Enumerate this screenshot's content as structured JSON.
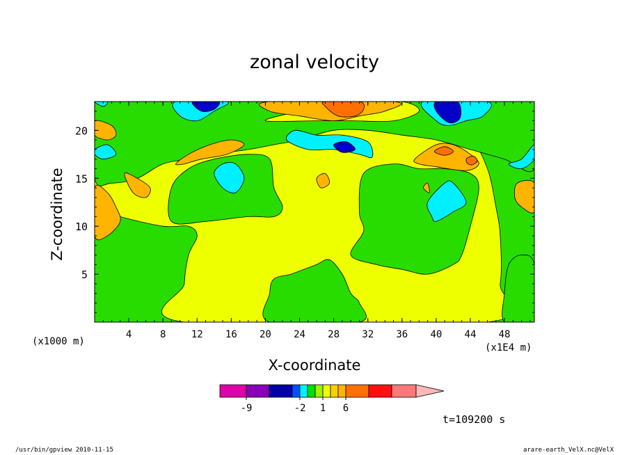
{
  "chart_data": {
    "type": "heatmap",
    "title": "zonal velocity",
    "xlabel": "X-coordinate",
    "ylabel": "Z-coordinate",
    "x_unit_label": "(x1E4 m)",
    "y_unit_label": "(x1000 m)",
    "x_ticks": [
      "4",
      "8",
      "12",
      "16",
      "20",
      "24",
      "28",
      "32",
      "36",
      "40",
      "44",
      "48"
    ],
    "y_ticks": [
      "5",
      "10",
      "15",
      "20"
    ],
    "xlim": [
      0,
      51.5
    ],
    "ylim": [
      0,
      23
    ],
    "time_label": "t=109200 s",
    "colorbar": {
      "tick_labels": [
        {
          "label": "-9",
          "value": -9
        },
        {
          "label": "-2",
          "value": -2
        },
        {
          "label": "1",
          "value": 1
        },
        {
          "label": "6",
          "value": 6
        }
      ],
      "colors": [
        "#e000a8",
        "#8800b8",
        "#0000a8",
        "#0050ff",
        "#00f0ff",
        "#00e000",
        "#a0f000",
        "#f0ff00",
        "#ffd000",
        "#ffb400",
        "#ff7000",
        "#ff1010",
        "#ff7878",
        "#ffb8b8"
      ],
      "triangle_color": "#ffb8b8"
    },
    "field_colors": {
      "background": "#28dc00",
      "slow_positive": "#eeff00",
      "positive": "#ffb400",
      "strong_positive": "#ff7000",
      "negative": "#00f0ff",
      "strong_negative": "#0000c8"
    },
    "regions": [
      {
        "level": "slow_positive",
        "points": [
          [
            10.5,
            0
          ],
          [
            46,
            0
          ],
          [
            47.5,
            4
          ],
          [
            47.5,
            9
          ],
          [
            47,
            12
          ],
          [
            46,
            16
          ],
          [
            44,
            19
          ],
          [
            40,
            20
          ],
          [
            36,
            20
          ],
          [
            33,
            21
          ],
          [
            30,
            21.5
          ],
          [
            27,
            21
          ],
          [
            23,
            20
          ],
          [
            20,
            19.5
          ],
          [
            18,
            19
          ],
          [
            14,
            19
          ],
          [
            10,
            18
          ],
          [
            6,
            17
          ],
          [
            3,
            16
          ],
          [
            0,
            15.5
          ],
          [
            0,
            12
          ],
          [
            3,
            11
          ],
          [
            8,
            10
          ],
          [
            11,
            10
          ],
          [
            12,
            9
          ],
          [
            11,
            7
          ],
          [
            10.5,
            4
          ]
        ]
      },
      {
        "level": "background",
        "points": [
          [
            20.5,
            0
          ],
          [
            31,
            0
          ],
          [
            31,
            2
          ],
          [
            30,
            3
          ],
          [
            29,
            5
          ],
          [
            27.5,
            6.5
          ],
          [
            26,
            6
          ],
          [
            24.5,
            5.5
          ],
          [
            23,
            5
          ],
          [
            21,
            4.5
          ],
          [
            20.5,
            3
          ]
        ]
      },
      {
        "level": "background",
        "points": [
          [
            30,
            7
          ],
          [
            33,
            6
          ],
          [
            36,
            5.5
          ],
          [
            39,
            5
          ],
          [
            42,
            6
          ],
          [
            43,
            7
          ],
          [
            44,
            10
          ],
          [
            45,
            14
          ],
          [
            44,
            15.5
          ],
          [
            41,
            16
          ],
          [
            38,
            16
          ],
          [
            35,
            16.5
          ],
          [
            31.5,
            15.5
          ],
          [
            31,
            11.5
          ],
          [
            31.5,
            9.5
          ]
        ]
      },
      {
        "level": "background",
        "points": [
          [
            9,
            10.5
          ],
          [
            13,
            10.5
          ],
          [
            18,
            11
          ],
          [
            21,
            11
          ],
          [
            22,
            12
          ],
          [
            21,
            14
          ],
          [
            20.5,
            17
          ],
          [
            18,
            17.5
          ],
          [
            14,
            17
          ],
          [
            11,
            16
          ],
          [
            9,
            14
          ]
        ]
      },
      {
        "level": "background",
        "points": [
          [
            48,
            0
          ],
          [
            51.5,
            0
          ],
          [
            51.5,
            6
          ],
          [
            50,
            7
          ],
          [
            48.5,
            6
          ],
          [
            48,
            3
          ]
        ]
      },
      {
        "level": "background",
        "points": [
          [
            0,
            15
          ],
          [
            2,
            14.5
          ],
          [
            5,
            15
          ],
          [
            8,
            16.5
          ],
          [
            11,
            17
          ],
          [
            14,
            17.5
          ],
          [
            18,
            18
          ],
          [
            21,
            18.5
          ],
          [
            24,
            19
          ],
          [
            28,
            20
          ],
          [
            32,
            20
          ],
          [
            36,
            19.5
          ],
          [
            40,
            19
          ],
          [
            44,
            18
          ],
          [
            48,
            17
          ],
          [
            51.5,
            16
          ],
          [
            51.5,
            23
          ],
          [
            0,
            23
          ]
        ]
      },
      {
        "level": "slow_positive",
        "points": [
          [
            20,
            21
          ],
          [
            24,
            22
          ],
          [
            30,
            23
          ],
          [
            36,
            23
          ],
          [
            38,
            22
          ],
          [
            35,
            21
          ],
          [
            30,
            21
          ],
          [
            26,
            21
          ]
        ]
      },
      {
        "level": "positive",
        "points": [
          [
            0,
            14
          ],
          [
            1.5,
            13.5
          ],
          [
            2.5,
            12
          ],
          [
            3,
            10.5
          ],
          [
            1.5,
            9
          ],
          [
            0,
            9
          ]
        ]
      },
      {
        "level": "positive",
        "points": [
          [
            3.5,
            15.5
          ],
          [
            5,
            15
          ],
          [
            6.5,
            14
          ],
          [
            6,
            13
          ],
          [
            4.5,
            13.5
          ]
        ]
      },
      {
        "level": "positive",
        "points": [
          [
            9.5,
            16.5
          ],
          [
            11,
            17.5
          ],
          [
            13.5,
            18.5
          ],
          [
            16,
            19
          ],
          [
            17.5,
            18.5
          ],
          [
            15.5,
            17.5
          ],
          [
            12.5,
            17
          ],
          [
            10.5,
            16.5
          ]
        ]
      },
      {
        "level": "positive",
        "points": [
          [
            0,
            21
          ],
          [
            2,
            20.5
          ],
          [
            2.5,
            19.5
          ],
          [
            1.5,
            19
          ],
          [
            0,
            19.5
          ]
        ]
      },
      {
        "level": "positive",
        "points": [
          [
            20.5,
            22
          ],
          [
            24,
            21.5
          ],
          [
            28,
            21
          ],
          [
            31,
            21.5
          ],
          [
            34,
            22
          ],
          [
            35,
            23
          ],
          [
            20.5,
            23
          ]
        ]
      },
      {
        "level": "strong_positive",
        "points": [
          [
            27,
            22.5
          ],
          [
            28.5,
            21.5
          ],
          [
            30.5,
            21.5
          ],
          [
            31.5,
            22.2
          ],
          [
            31,
            23
          ],
          [
            27,
            23
          ]
        ]
      },
      {
        "level": "positive",
        "points": [
          [
            37.5,
            17
          ],
          [
            40,
            18.5
          ],
          [
            42,
            18.5
          ],
          [
            44,
            17.5
          ],
          [
            45,
            16.5
          ],
          [
            43.5,
            15.8
          ],
          [
            40,
            16.2
          ],
          [
            38,
            16.5
          ]
        ]
      },
      {
        "level": "strong_positive",
        "points": [
          [
            39.8,
            17.8
          ],
          [
            41,
            18.3
          ],
          [
            42,
            17.8
          ],
          [
            41,
            17.4
          ]
        ]
      },
      {
        "level": "strong_positive",
        "points": [
          [
            43.6,
            17.1
          ],
          [
            44.4,
            17.3
          ],
          [
            44.8,
            16.8
          ],
          [
            44.2,
            16.4
          ],
          [
            43.6,
            16.6
          ]
        ]
      },
      {
        "level": "positive",
        "points": [
          [
            49.5,
            14.5
          ],
          [
            51.5,
            14.5
          ],
          [
            51.5,
            11.5
          ],
          [
            50,
            12
          ],
          [
            49.2,
            13
          ]
        ]
      },
      {
        "level": "positive",
        "points": [
          [
            26,
            15
          ],
          [
            27,
            15.5
          ],
          [
            27.5,
            14.5
          ],
          [
            26.5,
            14
          ]
        ]
      },
      {
        "level": "positive",
        "points": [
          [
            38.5,
            14
          ],
          [
            39,
            14.5
          ],
          [
            39.2,
            13.5
          ]
        ]
      },
      {
        "level": "negative",
        "points": [
          [
            14,
            15.5
          ],
          [
            15,
            16.5
          ],
          [
            16.5,
            16.5
          ],
          [
            17.5,
            15
          ],
          [
            16.5,
            13.5
          ],
          [
            15,
            14
          ]
        ]
      },
      {
        "level": "negative",
        "points": [
          [
            9.5,
            23
          ],
          [
            10,
            21.5
          ],
          [
            12,
            21
          ],
          [
            14,
            22
          ],
          [
            15.5,
            23
          ]
        ]
      },
      {
        "level": "negative",
        "points": [
          [
            22.5,
            19
          ],
          [
            25,
            18
          ],
          [
            28,
            18
          ],
          [
            31,
            17.5
          ],
          [
            32.5,
            17.2
          ],
          [
            32,
            18.8
          ],
          [
            29,
            19.5
          ],
          [
            26,
            19.5
          ],
          [
            23.5,
            20
          ]
        ]
      },
      {
        "level": "strong_negative",
        "points": [
          [
            28,
            18.5
          ],
          [
            29.5,
            18.8
          ],
          [
            30.5,
            18
          ],
          [
            29,
            17.7
          ]
        ]
      },
      {
        "level": "negative",
        "points": [
          [
            39,
            12.5
          ],
          [
            41,
            14.5
          ],
          [
            42,
            14.5
          ],
          [
            43.5,
            12.5
          ],
          [
            42,
            11.5
          ],
          [
            40,
            10.5
          ],
          [
            39.5,
            11
          ]
        ]
      },
      {
        "level": "negative",
        "points": [
          [
            38.5,
            23
          ],
          [
            40,
            21
          ],
          [
            41.5,
            20.5
          ],
          [
            43.5,
            21
          ],
          [
            45.5,
            21.5
          ],
          [
            46,
            23
          ]
        ]
      },
      {
        "level": "strong_negative",
        "points": [
          [
            40,
            22
          ],
          [
            41.5,
            20.8
          ],
          [
            42.8,
            21.3
          ],
          [
            42.5,
            23
          ],
          [
            40,
            23
          ]
        ]
      },
      {
        "level": "strong_negative",
        "points": [
          [
            11.5,
            23
          ],
          [
            12.5,
            22
          ],
          [
            14,
            22.2
          ],
          [
            14.5,
            23
          ]
        ]
      },
      {
        "level": "negative",
        "points": [
          [
            0,
            18
          ],
          [
            1.5,
            18.5
          ],
          [
            2.5,
            17.5
          ],
          [
            1,
            17
          ],
          [
            0,
            17.5
          ]
        ]
      },
      {
        "level": "negative",
        "points": [
          [
            0,
            23
          ],
          [
            1,
            22.5
          ],
          [
            1.5,
            23
          ]
        ]
      },
      {
        "level": "negative",
        "points": [
          [
            48.5,
            16.5
          ],
          [
            50,
            17
          ],
          [
            51.5,
            18.5
          ],
          [
            51.5,
            17
          ],
          [
            50,
            16
          ]
        ]
      }
    ]
  },
  "footer": {
    "left": "/usr/bin/gpview  2010-11-15",
    "right": "arare-earth_VelX.nc@VelX"
  }
}
